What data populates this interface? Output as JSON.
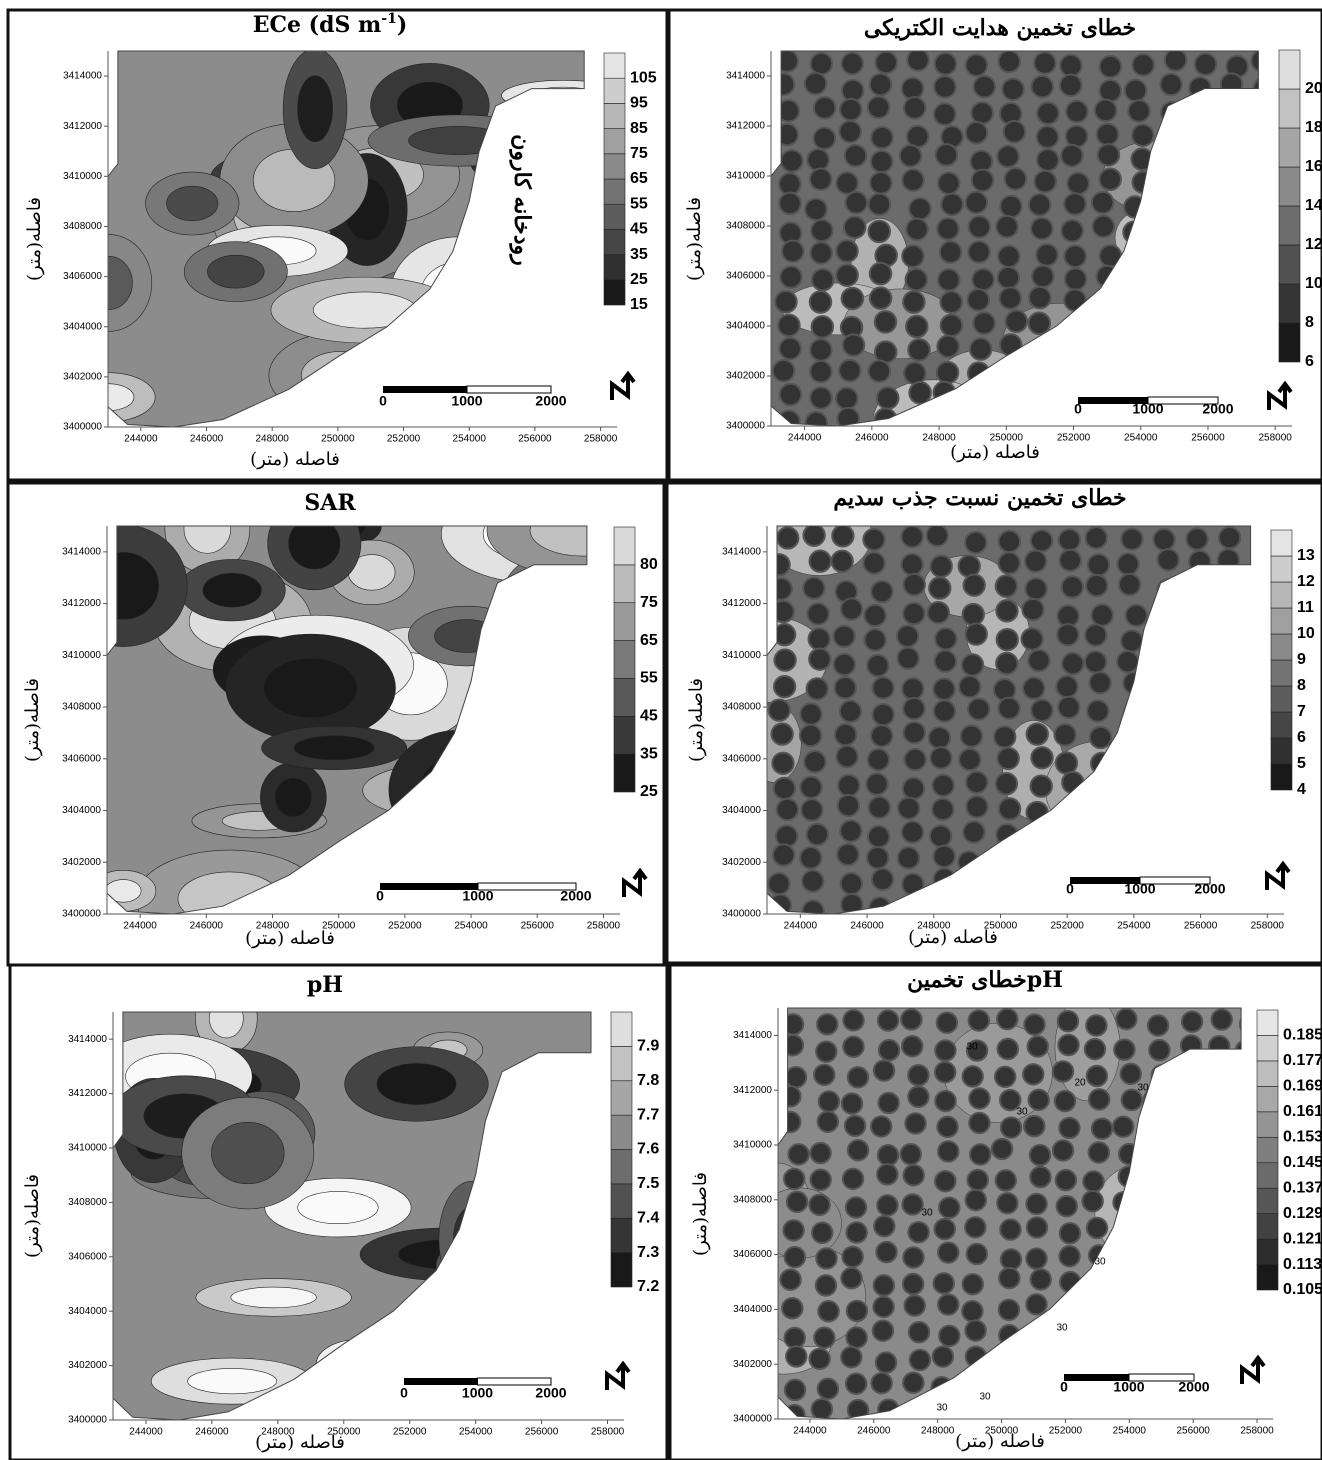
{
  "chart_data": [
    {
      "type": "contour",
      "title": [
        "ECe (dS m",
        "-1",
        ")"
      ],
      "x_label": "فاصله (متر)",
      "y_label": "فاصله(متر)",
      "xlim": [
        243000,
        258500
      ],
      "ylim": [
        3400000,
        3415000
      ],
      "xticks": [
        244000,
        246000,
        248000,
        250000,
        252000,
        254000,
        256000,
        258000
      ],
      "yticks": [
        3400000,
        3402000,
        3404000,
        3406000,
        3408000,
        3410000,
        3412000,
        3414000
      ],
      "colorbar": [
        15,
        25,
        35,
        45,
        55,
        65,
        75,
        85,
        95,
        105
      ],
      "scale_bar": [
        0,
        1000,
        2000
      ],
      "annotation": "رودخانه کارون"
    },
    {
      "type": "contour_error",
      "title": "خطای تخمین هدایت الکتریکی",
      "x_label": "فاصله (متر)",
      "y_label": "فاصله(متر)",
      "xlim": [
        243000,
        258500
      ],
      "ylim": [
        3400000,
        3415000
      ],
      "xticks": [
        244000,
        246000,
        248000,
        250000,
        252000,
        254000,
        256000,
        258000
      ],
      "yticks": [
        3400000,
        3402000,
        3404000,
        3406000,
        3408000,
        3410000,
        3412000,
        3414000
      ],
      "colorbar": [
        6,
        8,
        10,
        12,
        14,
        16,
        18,
        20
      ],
      "scale_bar": [
        0,
        1000,
        2000
      ]
    },
    {
      "type": "contour",
      "title": "SAR",
      "x_label": "فاصله (متر)",
      "y_label": "فاصله(متر)",
      "xlim": [
        243000,
        258500
      ],
      "ylim": [
        3400000,
        3415000
      ],
      "xticks": [
        244000,
        246000,
        248000,
        250000,
        252000,
        254000,
        256000,
        258000
      ],
      "yticks": [
        3400000,
        3402000,
        3404000,
        3406000,
        3408000,
        3410000,
        3412000,
        3414000
      ],
      "colorbar": [
        25,
        35,
        45,
        55,
        65,
        75,
        80
      ],
      "scale_bar": [
        0,
        1000,
        2000
      ]
    },
    {
      "type": "contour_error",
      "title": "خطای تخمین نسبت جذب سدیم",
      "x_label": "فاصله (متر)",
      "y_label": "فاصله(متر)",
      "xlim": [
        243000,
        258500
      ],
      "ylim": [
        3400000,
        3415000
      ],
      "xticks": [
        244000,
        246000,
        248000,
        250000,
        252000,
        254000,
        256000,
        258000
      ],
      "yticks": [
        3400000,
        3402000,
        3404000,
        3406000,
        3408000,
        3410000,
        3412000,
        3414000
      ],
      "colorbar": [
        4,
        5,
        6,
        7,
        8,
        9,
        10,
        11,
        12,
        13
      ],
      "scale_bar": [
        0,
        1000,
        2000
      ]
    },
    {
      "type": "contour",
      "title": "pH",
      "x_label": "فاصله (متر)",
      "y_label": "فاصله(متر)",
      "xlim": [
        243000,
        258500
      ],
      "ylim": [
        3400000,
        3415000
      ],
      "xticks": [
        244000,
        246000,
        248000,
        250000,
        252000,
        254000,
        256000,
        258000
      ],
      "yticks": [
        3400000,
        3402000,
        3404000,
        3406000,
        3408000,
        3410000,
        3412000,
        3414000
      ],
      "colorbar": [
        7.2,
        7.3,
        7.4,
        7.5,
        7.6,
        7.7,
        7.8,
        7.9
      ],
      "scale_bar": [
        0,
        1000,
        2000
      ]
    },
    {
      "type": "contour_error",
      "title": "خطای تخمینpH",
      "x_label": "فاصله (متر)",
      "y_label": "فاصله(متر)",
      "xlim": [
        243000,
        258500
      ],
      "ylim": [
        3400000,
        3415000
      ],
      "xticks": [
        244000,
        246000,
        248000,
        250000,
        252000,
        254000,
        256000,
        258000
      ],
      "yticks": [
        3400000,
        3402000,
        3404000,
        3406000,
        3408000,
        3410000,
        3412000,
        3414000
      ],
      "colorbar": [
        0.105,
        0.113,
        0.121,
        0.129,
        0.137,
        0.145,
        0.153,
        0.161,
        0.169,
        0.177,
        0.185
      ],
      "scale_bar": [
        0,
        1000,
        2000
      ],
      "contour_labels": [
        30,
        20,
        30,
        30,
        30,
        30,
        30,
        30,
        30
      ]
    }
  ]
}
